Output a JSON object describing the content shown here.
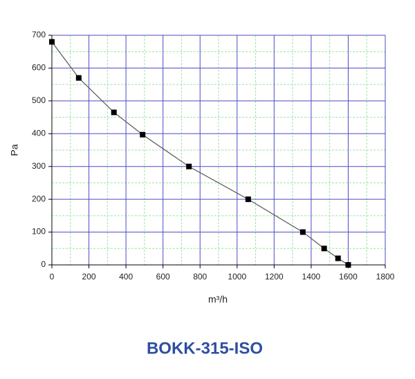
{
  "chart_data": {
    "type": "line",
    "title": "BOKK-315-ISO",
    "x_label": "m³/h",
    "y_label": "Pa",
    "x": [
      0,
      145,
      335,
      490,
      740,
      1060,
      1355,
      1470,
      1545,
      1600
    ],
    "series": [
      {
        "color": "#555555",
        "marker_color": "#000000",
        "values": [
          680,
          570,
          465,
          397,
          300,
          200,
          100,
          50,
          20,
          0
        ]
      }
    ],
    "xlim": [
      0,
      1800
    ],
    "ylim": [
      0,
      700
    ],
    "xticks": [
      0,
      200,
      400,
      600,
      800,
      1000,
      1200,
      1400,
      1600,
      1800
    ],
    "yticks": [
      0,
      100,
      200,
      300,
      400,
      500,
      600,
      700
    ],
    "xminorticks": [
      100,
      300,
      500,
      700,
      900,
      1100,
      1300,
      1500,
      1700
    ],
    "yminorticks": [
      50,
      150,
      250,
      350,
      450,
      550,
      650
    ],
    "grid": true,
    "grid_color": "#4a4ac8",
    "minor_grid_color": "#9ee29e"
  }
}
